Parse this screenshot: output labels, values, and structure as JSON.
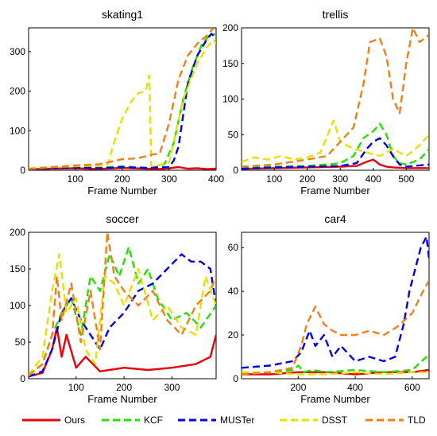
{
  "colors": {
    "Ours": "#e8000b",
    "KCF": "#22e000",
    "MUSTer": "#0000e0",
    "DSST": "#e5e000",
    "TLD": "#f07f1a"
  },
  "legend": {
    "placement": "bottom",
    "entries": [
      "Ours",
      "KCF",
      "MUSTer",
      "DSST",
      "TLD"
    ]
  },
  "chart_data": [
    {
      "type": "line",
      "title": "skating1",
      "xlabel": "Frame Number",
      "ylabel": "",
      "xlim": [
        1,
        400
      ],
      "ylim": [
        0,
        360
      ],
      "xticks": [
        100,
        200,
        300,
        400
      ],
      "yticks": [
        0,
        100,
        200,
        300
      ],
      "grid": false,
      "series": [
        {
          "name": "Ours",
          "dash": false,
          "x": [
            1,
            50,
            100,
            150,
            200,
            250,
            280,
            300,
            320,
            340,
            360,
            380,
            400
          ],
          "y": [
            2,
            4,
            5,
            3,
            6,
            4,
            3,
            5,
            8,
            4,
            5,
            3,
            4
          ]
        },
        {
          "name": "KCF",
          "dash": true,
          "x": [
            1,
            50,
            100,
            150,
            200,
            250,
            270,
            290,
            310,
            330,
            350,
            370,
            385,
            400
          ],
          "y": [
            2,
            5,
            8,
            6,
            10,
            6,
            8,
            15,
            70,
            180,
            260,
            320,
            340,
            345
          ]
        },
        {
          "name": "MUSTer",
          "dash": true,
          "x": [
            1,
            50,
            100,
            150,
            200,
            250,
            300,
            310,
            320,
            330,
            340,
            360,
            380,
            390,
            400
          ],
          "y": [
            2,
            6,
            7,
            5,
            8,
            6,
            8,
            25,
            60,
            140,
            220,
            290,
            330,
            345,
            335
          ]
        },
        {
          "name": "DSST",
          "dash": true,
          "x": [
            1,
            50,
            100,
            150,
            170,
            180,
            200,
            220,
            235,
            250,
            258,
            262,
            275,
            300,
            330,
            360,
            380,
            395,
            400
          ],
          "y": [
            5,
            8,
            10,
            12,
            15,
            60,
            130,
            175,
            195,
            200,
            240,
            10,
            12,
            20,
            180,
            270,
            310,
            330,
            320
          ]
        },
        {
          "name": "TLD",
          "dash": true,
          "x": [
            1,
            50,
            100,
            150,
            170,
            200,
            230,
            250,
            265,
            280,
            300,
            320,
            340,
            360,
            380,
            395,
            400
          ],
          "y": [
            3,
            8,
            12,
            15,
            20,
            28,
            30,
            35,
            40,
            42,
            120,
            230,
            290,
            320,
            340,
            360,
            355
          ]
        }
      ]
    },
    {
      "type": "line",
      "title": "trellis",
      "xlabel": "Frame Number",
      "ylabel": "",
      "xlim": [
        1,
        569
      ],
      "ylim": [
        0,
        200
      ],
      "xticks": [
        100,
        200,
        300,
        400,
        500
      ],
      "yticks": [
        0,
        50,
        100,
        150,
        200
      ],
      "grid": false,
      "series": [
        {
          "name": "Ours",
          "dash": false,
          "x": [
            1,
            100,
            200,
            300,
            350,
            380,
            400,
            420,
            440,
            460,
            500,
            569
          ],
          "y": [
            2,
            3,
            4,
            5,
            6,
            12,
            15,
            8,
            5,
            4,
            3,
            3
          ]
        },
        {
          "name": "KCF",
          "dash": true,
          "x": [
            1,
            100,
            200,
            300,
            340,
            370,
            400,
            420,
            440,
            460,
            480,
            500,
            540,
            569
          ],
          "y": [
            3,
            5,
            6,
            10,
            20,
            45,
            55,
            65,
            50,
            20,
            10,
            8,
            15,
            30
          ]
        },
        {
          "name": "MUSTer",
          "dash": true,
          "x": [
            1,
            100,
            200,
            300,
            350,
            380,
            400,
            420,
            440,
            460,
            480,
            500,
            569
          ],
          "y": [
            2,
            4,
            5,
            6,
            10,
            30,
            40,
            45,
            35,
            20,
            8,
            5,
            8
          ]
        },
        {
          "name": "DSST",
          "dash": true,
          "x": [
            1,
            40,
            80,
            120,
            160,
            200,
            240,
            280,
            300,
            340,
            380,
            420,
            460,
            500,
            540,
            569
          ],
          "y": [
            12,
            18,
            15,
            20,
            15,
            18,
            25,
            70,
            40,
            30,
            25,
            20,
            30,
            20,
            35,
            50
          ]
        },
        {
          "name": "TLD",
          "dash": true,
          "x": [
            1,
            100,
            200,
            260,
            300,
            340,
            370,
            390,
            420,
            440,
            460,
            480,
            500,
            520,
            540,
            569
          ],
          "y": [
            5,
            8,
            15,
            20,
            40,
            60,
            120,
            180,
            185,
            160,
            100,
            80,
            150,
            200,
            180,
            190
          ]
        }
      ]
    },
    {
      "type": "line",
      "title": "soccer",
      "xlabel": "Frame Number",
      "ylabel": "",
      "xlim": [
        1,
        392
      ],
      "ylim": [
        0,
        200
      ],
      "xticks": [
        100,
        200,
        300
      ],
      "yticks": [
        0,
        50,
        100,
        150,
        200
      ],
      "grid": false,
      "series": [
        {
          "name": "Ours",
          "dash": false,
          "x": [
            1,
            30,
            50,
            60,
            70,
            80,
            100,
            120,
            150,
            200,
            250,
            300,
            350,
            380,
            392
          ],
          "y": [
            3,
            8,
            40,
            70,
            30,
            60,
            15,
            30,
            10,
            15,
            12,
            15,
            20,
            30,
            60
          ]
        },
        {
          "name": "KCF",
          "dash": true,
          "x": [
            1,
            30,
            50,
            70,
            90,
            110,
            130,
            150,
            170,
            190,
            210,
            230,
            250,
            270,
            300,
            330,
            360,
            392
          ],
          "y": [
            5,
            20,
            60,
            90,
            110,
            60,
            140,
            120,
            170,
            140,
            180,
            130,
            150,
            110,
            80,
            90,
            70,
            100
          ]
        },
        {
          "name": "MUSTer",
          "dash": true,
          "x": [
            1,
            30,
            50,
            70,
            90,
            110,
            130,
            150,
            170,
            200,
            230,
            260,
            290,
            320,
            340,
            360,
            380,
            392
          ],
          "y": [
            3,
            10,
            40,
            90,
            110,
            80,
            60,
            40,
            70,
            90,
            120,
            130,
            150,
            170,
            160,
            160,
            150,
            100
          ]
        },
        {
          "name": "DSST",
          "dash": true,
          "x": [
            1,
            30,
            50,
            65,
            80,
            100,
            120,
            140,
            160,
            180,
            200,
            230,
            260,
            290,
            320,
            350,
            370,
            392
          ],
          "y": [
            5,
            30,
            120,
            170,
            90,
            110,
            40,
            20,
            140,
            130,
            100,
            150,
            80,
            100,
            70,
            60,
            140,
            100
          ]
        },
        {
          "name": "TLD",
          "dash": true,
          "x": [
            1,
            30,
            50,
            60,
            70,
            90,
            110,
            130,
            150,
            165,
            180,
            200,
            230,
            260,
            290,
            320,
            350,
            380,
            392
          ],
          "y": [
            4,
            20,
            60,
            140,
            80,
            130,
            50,
            120,
            40,
            200,
            140,
            120,
            100,
            120,
            80,
            60,
            100,
            120,
            140
          ]
        }
      ]
    },
    {
      "type": "line",
      "title": "car4",
      "xlabel": "Frame Number",
      "ylabel": "",
      "xlim": [
        1,
        659
      ],
      "ylim": [
        0,
        67
      ],
      "xticks": [
        200,
        400,
        600
      ],
      "yticks": [
        0,
        20,
        40,
        60
      ],
      "grid": false,
      "series": [
        {
          "name": "Ours",
          "dash": false,
          "x": [
            1,
            100,
            200,
            300,
            400,
            500,
            600,
            659
          ],
          "y": [
            2,
            2,
            3,
            3,
            2,
            3,
            3,
            4
          ]
        },
        {
          "name": "KCF",
          "dash": true,
          "x": [
            1,
            100,
            180,
            200,
            220,
            250,
            300,
            400,
            500,
            600,
            650,
            659
          ],
          "y": [
            2,
            3,
            4,
            6,
            3,
            4,
            3,
            4,
            3,
            4,
            10,
            12
          ]
        },
        {
          "name": "MUSTer",
          "dash": true,
          "x": [
            1,
            100,
            180,
            210,
            240,
            260,
            290,
            320,
            350,
            400,
            450,
            500,
            540,
            570,
            590,
            610,
            630,
            650,
            659
          ],
          "y": [
            5,
            6,
            8,
            12,
            22,
            15,
            20,
            10,
            15,
            8,
            10,
            8,
            10,
            25,
            40,
            50,
            60,
            65,
            55
          ]
        },
        {
          "name": "DSST",
          "dash": true,
          "x": [
            1,
            100,
            200,
            300,
            400,
            500,
            600,
            659
          ],
          "y": [
            3,
            3,
            2,
            2,
            3,
            2,
            3,
            3
          ]
        },
        {
          "name": "TLD",
          "dash": true,
          "x": [
            1,
            100,
            180,
            210,
            230,
            260,
            290,
            320,
            350,
            400,
            450,
            500,
            550,
            600,
            630,
            659
          ],
          "y": [
            2,
            3,
            5,
            15,
            25,
            33,
            25,
            22,
            20,
            20,
            22,
            20,
            24,
            30,
            38,
            45
          ]
        }
      ]
    }
  ]
}
